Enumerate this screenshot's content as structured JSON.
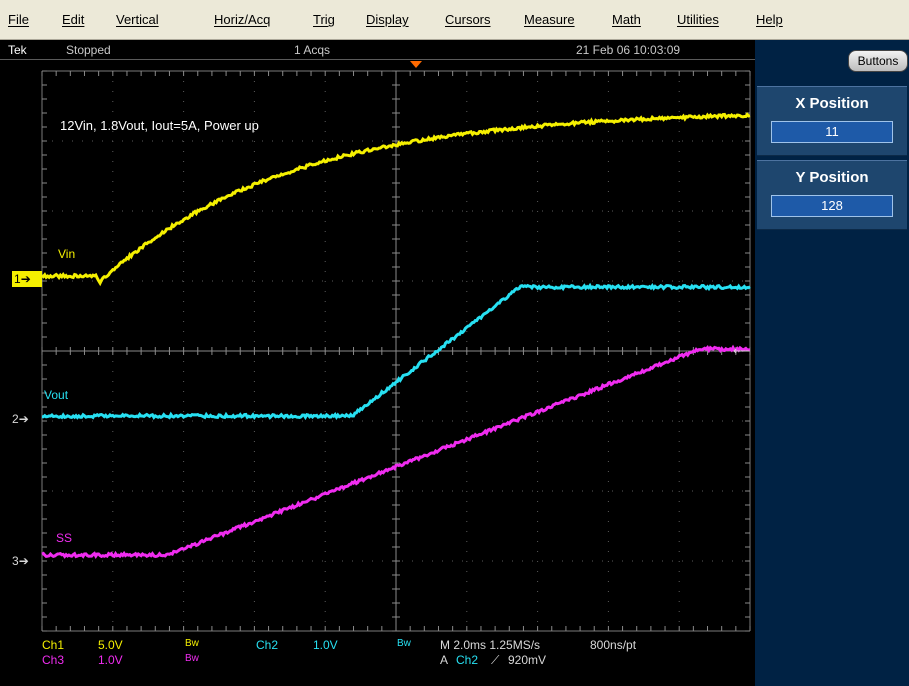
{
  "menu": {
    "items": [
      "File",
      "Edit",
      "Vertical",
      "Horiz/Acq",
      "Trig",
      "Display",
      "Cursors",
      "Measure",
      "Math",
      "Utilities",
      "Help"
    ]
  },
  "status": {
    "brand": "Tek",
    "state": "Stopped",
    "acqs": "1 Acqs",
    "datetime": "21 Feb 06 10:03:09"
  },
  "panel": {
    "buttons_label": "Buttons",
    "x_position": {
      "label": "X Position",
      "value": "11"
    },
    "y_position": {
      "label": "Y Position",
      "value": "128"
    }
  },
  "scope": {
    "annotation": "12Vin, 1.8Vout, Iout=5A, Power up",
    "channels": [
      {
        "marker": "1",
        "label": "Vin",
        "color": "#f5f000"
      },
      {
        "marker": "2",
        "label": "Vout",
        "color": "#27e0f2"
      },
      {
        "marker": "3",
        "label": "SS",
        "color": "#f02cf0"
      }
    ],
    "trigger_color": "#ff6a00"
  },
  "readouts": {
    "ch1_name": "Ch1",
    "ch1_scale": "5.0V",
    "ch1_bw": "Bw",
    "ch2_name": "Ch2",
    "ch2_scale": "1.0V",
    "ch2_bw": "Bw",
    "ch3_name": "Ch3",
    "ch3_scale": "1.0V",
    "ch3_bw": "Bw",
    "timebase": "M 2.0ms 1.25MS/s",
    "resolution": "800ns/pt",
    "trigger_prefix": "A",
    "trigger_source": "Ch2",
    "trigger_slope": "⟋",
    "trigger_level": "920mV"
  }
}
